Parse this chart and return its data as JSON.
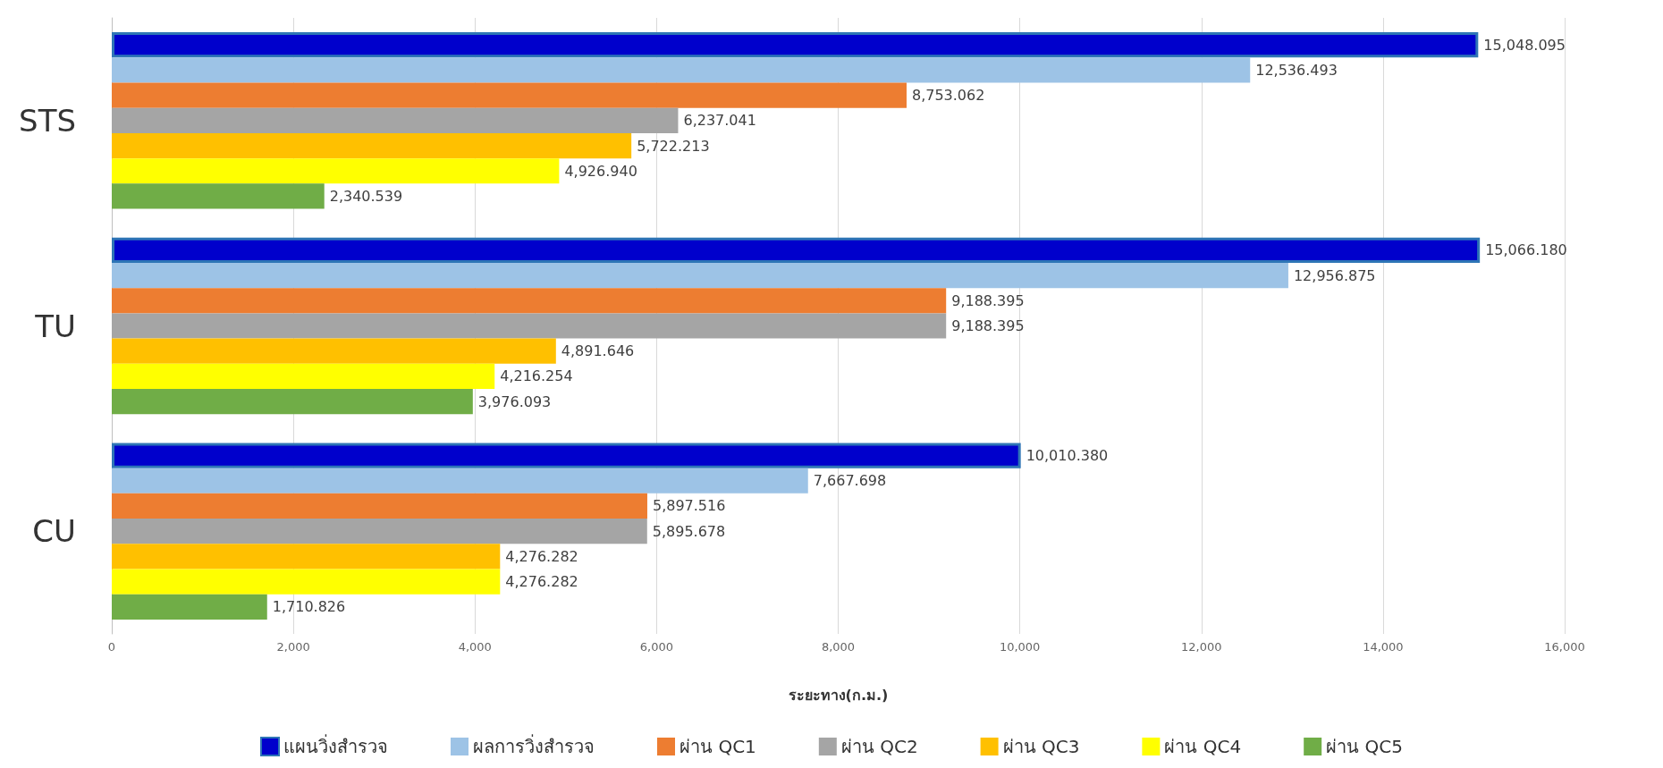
{
  "chart_data": {
    "type": "bar",
    "orientation": "horizontal",
    "xlabel": "ระยะทาง(ก.ม.)",
    "categories": [
      "STS",
      "TU",
      "CU"
    ],
    "series": [
      {
        "name": "แผนวิ่งสำรวจ",
        "color": "#0000cc",
        "values": [
          15048.095,
          15066.18,
          10010.38
        ],
        "value_labels": [
          "15,048.095",
          "15,066.180",
          "10,010.380"
        ]
      },
      {
        "name": "ผลการวิ่งสำรวจ",
        "color": "#9dc3e6",
        "values": [
          12536.493,
          12956.875,
          7667.698
        ],
        "value_labels": [
          "12,536.493",
          "12,956.875",
          "7,667.698"
        ]
      },
      {
        "name": "ผ่าน QC1",
        "color": "#ed7d31",
        "values": [
          8753.062,
          9188.395,
          5897.516
        ],
        "value_labels": [
          "8,753.062",
          "9,188.395",
          "5,897.516"
        ]
      },
      {
        "name": "ผ่าน QC2",
        "color": "#a5a5a5",
        "values": [
          6237.041,
          9188.395,
          5895.678
        ],
        "value_labels": [
          "6,237.041",
          "9,188.395",
          "5,895.678"
        ]
      },
      {
        "name": "ผ่าน QC3",
        "color": "#ffc000",
        "values": [
          5722.213,
          4891.646,
          4276.282
        ],
        "value_labels": [
          "5,722.213",
          "4,891.646",
          "4,276.282"
        ]
      },
      {
        "name": "ผ่าน QC4",
        "color": "#ffff00",
        "values": [
          4926.94,
          4216.254,
          4276.282
        ],
        "value_labels": [
          "4,926.940",
          "4,216.254",
          "4,276.282"
        ]
      },
      {
        "name": "ผ่าน QC5",
        "color": "#70ad47",
        "values": [
          2340.539,
          3976.093,
          1710.826
        ],
        "value_labels": [
          "2,340.539",
          "3,976.093",
          "1,710.826"
        ]
      }
    ],
    "xlim": [
      0,
      16000
    ],
    "xticks": [
      0,
      {
        "value": 2000,
        "label": "2,000"
      },
      {
        "value": 4000,
        "label": "4,000"
      },
      {
        "value": 6000,
        "label": "6,000"
      },
      {
        "value": 8000,
        "label": "8,000"
      },
      {
        "value": 10000,
        "label": "10,000"
      },
      {
        "value": 12000,
        "label": "12,000"
      },
      {
        "value": 14000,
        "label": "14,000"
      },
      {
        "value": 16000,
        "label": "16,000"
      }
    ],
    "grid": "x",
    "legend": "bottom"
  }
}
